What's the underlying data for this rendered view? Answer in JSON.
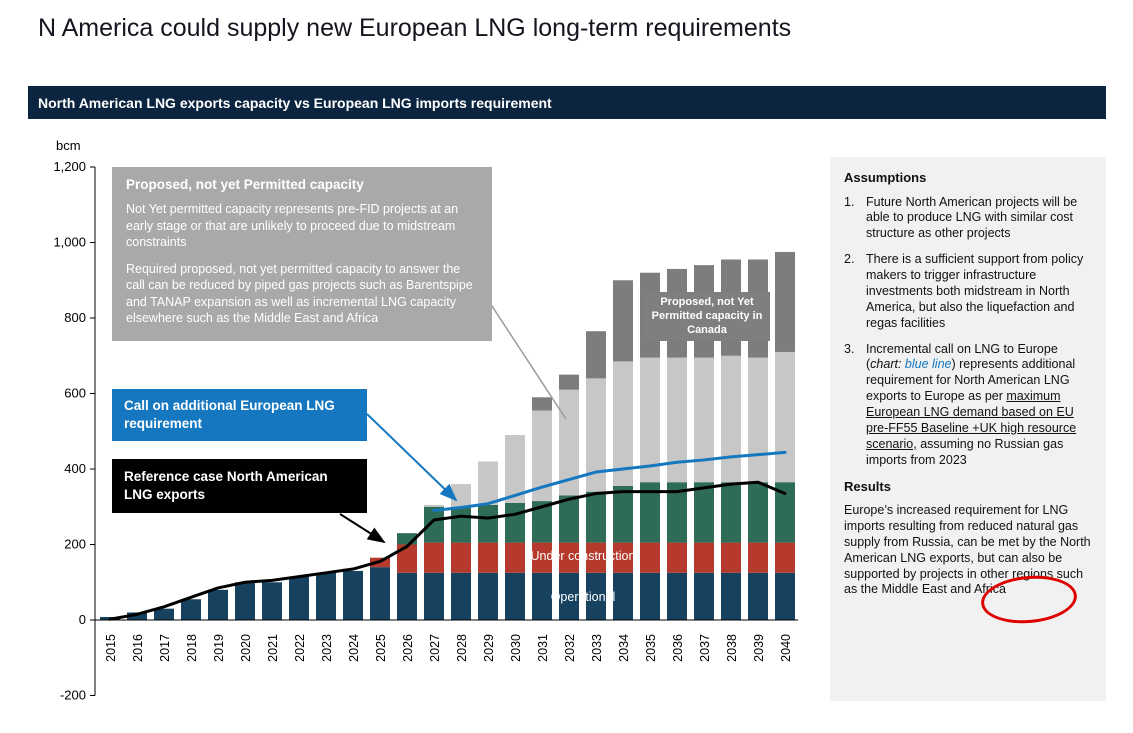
{
  "page": {
    "title": "N America could supply new European LNG long-term requirements"
  },
  "banner": {
    "title": "North American LNG exports capacity vs European LNG imports requirement"
  },
  "chart": {
    "unit_label": "bcm",
    "annotations": {
      "gray_box": {
        "title": "Proposed, not yet Permitted capacity",
        "para1": "Not Yet permitted capacity represents pre-FID projects at an early stage or that are unlikely to proceed due to midstream constraints",
        "para2": "Required proposed, not yet permitted capacity to answer the call can be reduced by piped gas projects such as Barentspipe and TANAP expansion as well as incremental LNG capacity elsewhere such as the Middle East and Africa"
      },
      "blue_box": "Call on additional European LNG requirement",
      "black_box": "Reference case North American LNG exports",
      "canada_box": "Proposed, not Yet Permitted capacity in Canada",
      "under_construction_label": "Under construction",
      "operational_label": "Operational"
    }
  },
  "chart_data": {
    "type": "bar",
    "subtype": "stacked-bars-with-lines",
    "title": "North American LNG exports capacity vs European LNG imports requirement",
    "ylabel": "bcm",
    "ylim": [
      -200,
      1200
    ],
    "grid": false,
    "years": [
      "2015",
      "2016",
      "2017",
      "2018",
      "2019",
      "2020",
      "2021",
      "2022",
      "2023",
      "2024",
      "2025",
      "2026",
      "2027",
      "2028",
      "2029",
      "2030",
      "2031",
      "2032",
      "2033",
      "2034",
      "2035",
      "2036",
      "2037",
      "2038",
      "2039",
      "2040"
    ],
    "y_axis": {
      "ticks": [
        {
          "label": "1,200",
          "value": 1200
        },
        {
          "label": "1,000",
          "value": 1000
        },
        {
          "label": "800",
          "value": 800
        },
        {
          "label": "600",
          "value": 600
        },
        {
          "label": "400",
          "value": 400
        },
        {
          "label": "200",
          "value": 200
        },
        {
          "label": "0",
          "value": 0
        },
        {
          "label": "-200",
          "value": -200
        }
      ]
    },
    "stacks": [
      {
        "name": "Operational",
        "color": "#16425f",
        "values": [
          8,
          20,
          30,
          55,
          80,
          100,
          100,
          115,
          125,
          130,
          140,
          125,
          125,
          125,
          125,
          125,
          125,
          125,
          125,
          125,
          125,
          125,
          125,
          125,
          125,
          125
        ]
      },
      {
        "name": "Under construction",
        "color": "#b53a2d",
        "values": [
          0,
          0,
          0,
          0,
          0,
          0,
          0,
          0,
          0,
          0,
          25,
          75,
          80,
          80,
          80,
          80,
          80,
          80,
          80,
          80,
          80,
          80,
          80,
          80,
          80,
          80
        ]
      },
      {
        "name": "(unlabeled green segment)",
        "color": "#2f6c55",
        "values": [
          0,
          0,
          0,
          0,
          0,
          0,
          0,
          0,
          0,
          0,
          0,
          30,
          95,
          95,
          100,
          105,
          110,
          125,
          135,
          150,
          160,
          160,
          160,
          160,
          160,
          160
        ]
      },
      {
        "name": "Proposed, not yet Permitted",
        "color": "#c7c7c7",
        "values": [
          0,
          0,
          0,
          0,
          0,
          0,
          0,
          0,
          0,
          0,
          0,
          0,
          5,
          60,
          115,
          180,
          240,
          280,
          300,
          330,
          330,
          330,
          330,
          335,
          330,
          345
        ]
      },
      {
        "name": "Proposed, not Yet Permitted capacity in Canada",
        "color": "#7d7d7d",
        "values": [
          0,
          0,
          0,
          0,
          0,
          0,
          0,
          0,
          0,
          0,
          0,
          0,
          0,
          0,
          0,
          0,
          35,
          40,
          125,
          215,
          225,
          235,
          245,
          255,
          260,
          265
        ]
      }
    ],
    "lines": [
      {
        "name": "Reference case North American LNG exports",
        "color": "#000000",
        "values": [
          2,
          15,
          35,
          60,
          85,
          100,
          105,
          115,
          125,
          135,
          155,
          195,
          265,
          275,
          270,
          280,
          300,
          320,
          335,
          340,
          340,
          340,
          350,
          360,
          365,
          335
        ]
      },
      {
        "name": "Call on additional European LNG requirement",
        "color": "#1577c0",
        "values": [
          null,
          null,
          null,
          null,
          null,
          null,
          null,
          null,
          null,
          null,
          null,
          null,
          290,
          298,
          308,
          330,
          352,
          372,
          392,
          400,
          408,
          418,
          424,
          432,
          438,
          444
        ]
      }
    ]
  },
  "sidebar": {
    "assumptions_title": "Assumptions",
    "items": [
      {
        "num": "1.",
        "text": "Future North American projects will be able to produce LNG with similar cost structure as other projects"
      },
      {
        "num": "2.",
        "text": "There is a sufficient support from policy makers to trigger infrastructure investments both midstream in North America, but also the liquefaction and regas facilities"
      },
      {
        "num": "3.",
        "pre": "Incremental call on LNG to Europe (",
        "italic_chart": "chart: ",
        "italic_blue": "blue line",
        "close": ") represents additional requirement for North American LNG exports to Europe as per ",
        "underlined": "maximum European LNG demand based on EU pre-FF55 Baseline +UK high resource scenario,",
        "post": " assuming no Russian gas imports from 2023"
      }
    ],
    "results_title": "Results",
    "results_text": "Europe’s increased requirement for LNG imports resulting from reduced natural gas supply from Russia, can be met by the North American LNG exports, but can also be supported by projects in other regions such as the Middle East and Africa"
  }
}
